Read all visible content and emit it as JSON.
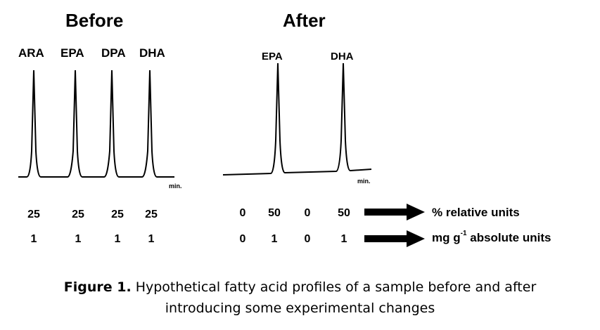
{
  "before": {
    "heading": "Before",
    "peaks": [
      "ARA",
      "EPA",
      "DPA",
      "DHA"
    ],
    "axis_unit": "min.",
    "relative_values": [
      "25",
      "25",
      "25",
      "25"
    ],
    "absolute_values": [
      "1",
      "1",
      "1",
      "1"
    ]
  },
  "after": {
    "heading": "After",
    "peaks": [
      "EPA",
      "DHA"
    ],
    "axis_unit": "min.",
    "relative_values": [
      "0",
      "50",
      "0",
      "50"
    ],
    "absolute_values": [
      "0",
      "1",
      "0",
      "1"
    ]
  },
  "row_labels": {
    "relative": "% relative units",
    "absolute_prefix": "mg g",
    "absolute_sup": "-1",
    "absolute_suffix": " absolute units"
  },
  "caption": {
    "label": "Figure 1.",
    "line1": " Hypothetical fatty acid profiles of a sample before and after",
    "line2": "introducing some experimental changes"
  }
}
